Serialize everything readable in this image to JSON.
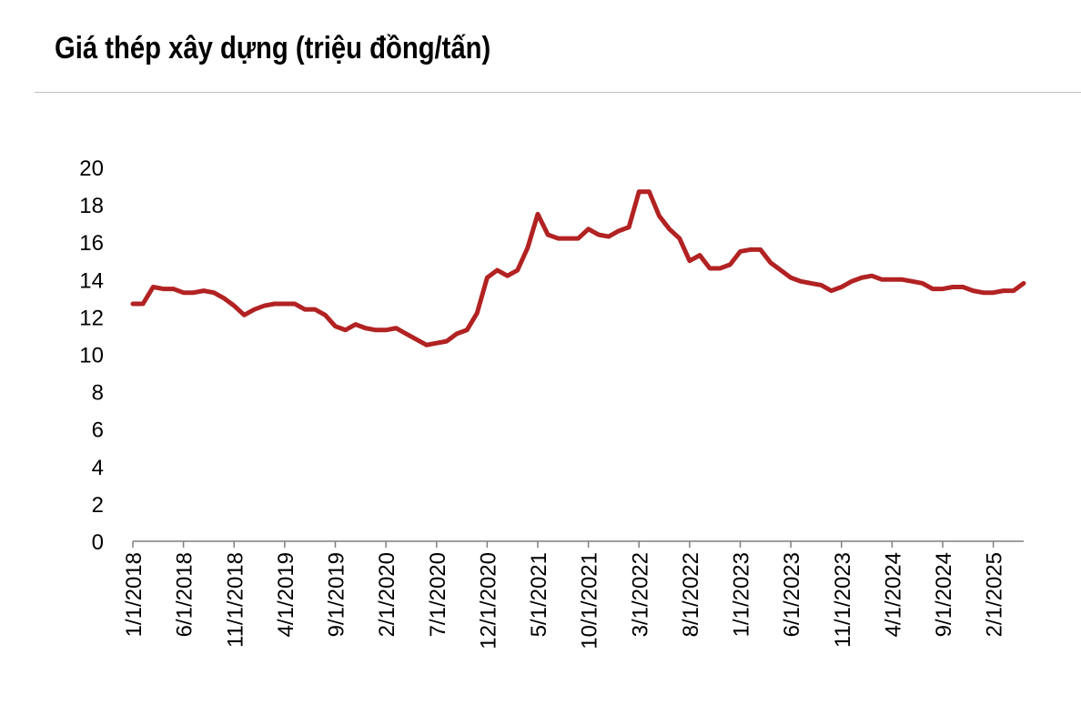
{
  "chart_data": {
    "type": "line",
    "title": "Giá thép xây dựng (triệu đồng/tấn)",
    "xlabel": "",
    "ylabel": "",
    "ylim": [
      0,
      20
    ],
    "yticks": [
      "0",
      "2",
      "4",
      "6",
      "8",
      "10",
      "12",
      "14",
      "16",
      "18",
      "20"
    ],
    "xticks": [
      "1/1/2018",
      "6/1/2018",
      "11/1/2018",
      "4/1/2019",
      "9/1/2019",
      "2/1/2020",
      "7/1/2020",
      "12/1/2020",
      "5/1/2021",
      "10/1/2021",
      "3/1/2022",
      "8/1/2022",
      "1/1/2023",
      "6/1/2023",
      "11/1/2023",
      "4/1/2024",
      "9/1/2024",
      "2/1/2025"
    ],
    "grid": false,
    "legend": "none",
    "line_color": "#b22222",
    "series": [
      {
        "x": [
          "1/1/2018",
          "2/1/2018",
          "3/1/2018",
          "4/1/2018",
          "5/1/2018",
          "6/1/2018",
          "7/1/2018",
          "8/1/2018",
          "9/1/2018",
          "10/1/2018",
          "11/1/2018",
          "12/1/2018",
          "1/1/2019",
          "2/1/2019",
          "3/1/2019",
          "4/1/2019",
          "5/1/2019",
          "6/1/2019",
          "7/1/2019",
          "8/1/2019",
          "9/1/2019",
          "10/1/2019",
          "11/1/2019",
          "12/1/2019",
          "1/1/2020",
          "2/1/2020",
          "3/1/2020",
          "4/1/2020",
          "5/1/2020",
          "6/1/2020",
          "7/1/2020",
          "8/1/2020",
          "9/1/2020",
          "10/1/2020",
          "11/1/2020",
          "12/1/2020",
          "1/1/2021",
          "2/1/2021",
          "3/1/2021",
          "4/1/2021",
          "5/1/2021",
          "6/1/2021",
          "7/1/2021",
          "8/1/2021",
          "9/1/2021",
          "10/1/2021",
          "11/1/2021",
          "12/1/2021",
          "1/1/2022",
          "2/1/2022",
          "3/1/2022",
          "4/1/2022",
          "5/1/2022",
          "6/1/2022",
          "7/1/2022",
          "8/1/2022",
          "9/1/2022",
          "10/1/2022",
          "11/1/2022",
          "12/1/2022",
          "1/1/2023",
          "2/1/2023",
          "3/1/2023",
          "4/1/2023",
          "5/1/2023",
          "6/1/2023",
          "7/1/2023",
          "8/1/2023",
          "9/1/2023",
          "10/1/2023",
          "11/1/2023",
          "12/1/2023",
          "1/1/2024",
          "2/1/2024",
          "3/1/2024",
          "4/1/2024",
          "5/1/2024",
          "6/1/2024",
          "7/1/2024",
          "8/1/2024",
          "9/1/2024",
          "10/1/2024",
          "11/1/2024",
          "12/1/2024",
          "1/1/2025",
          "2/1/2025",
          "3/1/2025",
          "4/1/2025",
          "5/1/2025"
        ],
        "values": [
          12.7,
          12.7,
          13.6,
          13.5,
          13.5,
          13.3,
          13.3,
          13.4,
          13.3,
          13.0,
          12.6,
          12.1,
          12.4,
          12.6,
          12.7,
          12.7,
          12.7,
          12.4,
          12.4,
          12.1,
          11.5,
          11.3,
          11.6,
          11.4,
          11.3,
          11.3,
          11.4,
          11.1,
          10.8,
          10.5,
          10.6,
          10.7,
          11.1,
          11.3,
          12.2,
          14.1,
          14.5,
          14.2,
          14.5,
          15.7,
          17.5,
          16.4,
          16.2,
          16.2,
          16.2,
          16.7,
          16.4,
          16.3,
          16.6,
          16.8,
          18.7,
          18.7,
          17.4,
          16.7,
          16.2,
          15.0,
          15.3,
          14.6,
          14.6,
          14.8,
          15.5,
          15.6,
          15.6,
          14.9,
          14.5,
          14.1,
          13.9,
          13.8,
          13.7,
          13.4,
          13.6,
          13.9,
          14.1,
          14.2,
          14.0,
          14.0,
          14.0,
          13.9,
          13.8,
          13.5,
          13.5,
          13.6,
          13.6,
          13.4,
          13.3,
          13.3,
          13.4,
          13.4,
          13.8
        ]
      }
    ]
  }
}
